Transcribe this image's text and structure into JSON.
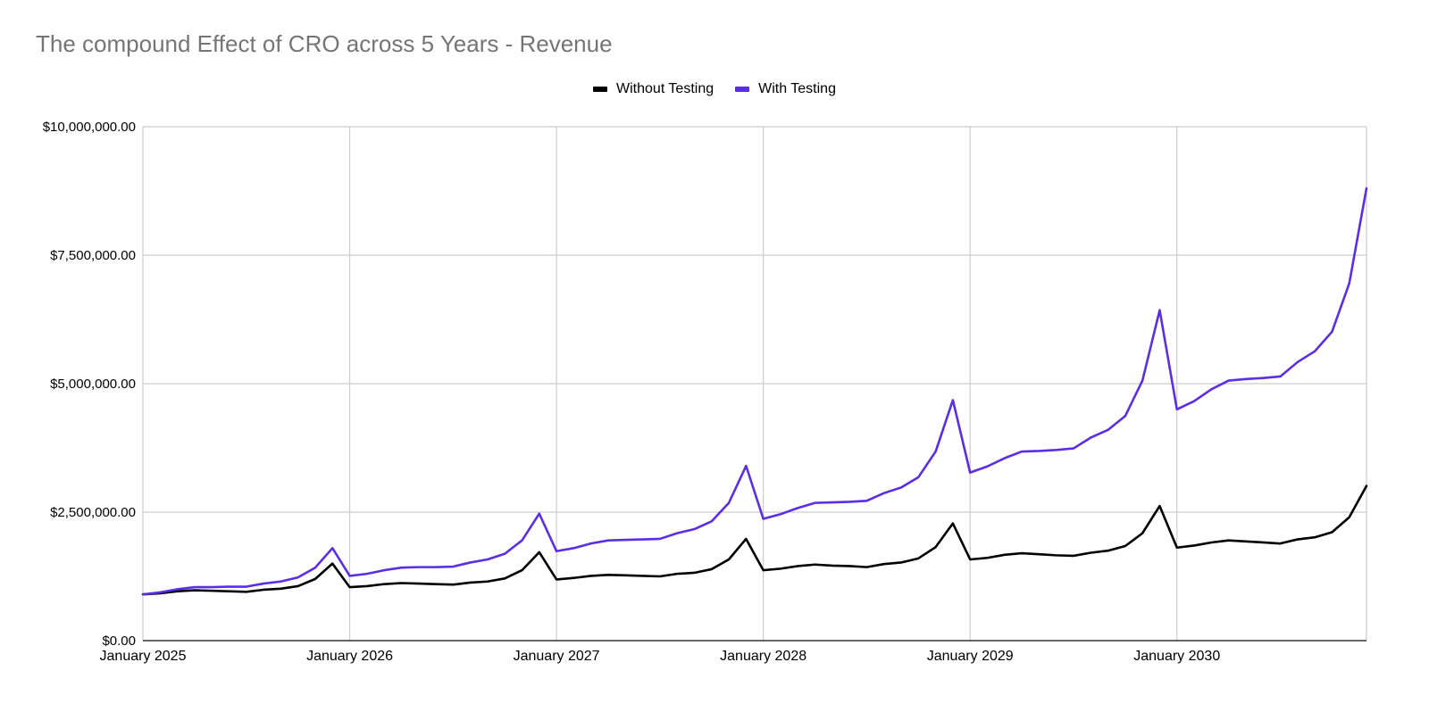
{
  "chart_data": {
    "type": "line",
    "title": "The compound Effect of CRO across 5 Years - Revenue",
    "xlabel": "",
    "ylabel": "",
    "ylim": [
      0,
      10000000
    ],
    "y_ticks": [
      0,
      2500000,
      5000000,
      7500000,
      10000000
    ],
    "y_tick_labels": [
      "$0.00",
      "$2,500,000.00",
      "$5,000,000.00",
      "$7,500,000.00",
      "$10,000,000.00"
    ],
    "x_ticks": [
      "January 2025",
      "January 2026",
      "January 2027",
      "January 2028",
      "January 2029",
      "January 2030"
    ],
    "x": [
      "Jan 2025",
      "Feb 2025",
      "Mar 2025",
      "Apr 2025",
      "May 2025",
      "Jun 2025",
      "Jul 2025",
      "Aug 2025",
      "Sep 2025",
      "Oct 2025",
      "Nov 2025",
      "Dec 2025",
      "Jan 2026",
      "Feb 2026",
      "Mar 2026",
      "Apr 2026",
      "May 2026",
      "Jun 2026",
      "Jul 2026",
      "Aug 2026",
      "Sep 2026",
      "Oct 2026",
      "Nov 2026",
      "Dec 2026",
      "Jan 2027",
      "Feb 2027",
      "Mar 2027",
      "Apr 2027",
      "May 2027",
      "Jun 2027",
      "Jul 2027",
      "Aug 2027",
      "Sep 2027",
      "Oct 2027",
      "Nov 2027",
      "Dec 2027",
      "Jan 2028",
      "Feb 2028",
      "Mar 2028",
      "Apr 2028",
      "May 2028",
      "Jun 2028",
      "Jul 2028",
      "Aug 2028",
      "Sep 2028",
      "Oct 2028",
      "Nov 2028",
      "Dec 2028",
      "Jan 2029",
      "Feb 2029",
      "Mar 2029",
      "Apr 2029",
      "May 2029",
      "Jun 2029",
      "Jul 2029",
      "Aug 2029",
      "Sep 2029",
      "Oct 2029",
      "Nov 2029",
      "Dec 2029",
      "Jan 2030",
      "Feb 2030",
      "Mar 2030",
      "Apr 2030",
      "May 2030",
      "Jun 2030",
      "Jul 2030",
      "Aug 2030",
      "Sep 2030",
      "Oct 2030",
      "Nov 2030",
      "Dec 2030"
    ],
    "grid": true,
    "legend_position": "top-center",
    "series": [
      {
        "name": "Without Testing",
        "color": "#000000",
        "values": [
          900000,
          920000,
          960000,
          980000,
          970000,
          960000,
          950000,
          990000,
          1010000,
          1060000,
          1200000,
          1500000,
          1040000,
          1060000,
          1100000,
          1120000,
          1110000,
          1100000,
          1090000,
          1130000,
          1150000,
          1210000,
          1370000,
          1720000,
          1190000,
          1220000,
          1260000,
          1280000,
          1270000,
          1260000,
          1250000,
          1300000,
          1320000,
          1390000,
          1580000,
          1980000,
          1370000,
          1400000,
          1450000,
          1480000,
          1460000,
          1450000,
          1430000,
          1490000,
          1520000,
          1600000,
          1820000,
          2280000,
          1580000,
          1610000,
          1670000,
          1700000,
          1680000,
          1660000,
          1650000,
          1710000,
          1750000,
          1840000,
          2090000,
          2620000,
          1810000,
          1850000,
          1910000,
          1950000,
          1930000,
          1910000,
          1890000,
          1970000,
          2010000,
          2110000,
          2400000,
          3010000
        ]
      },
      {
        "name": "With Testing",
        "color": "#5b2de5",
        "values": [
          900000,
          940000,
          1000000,
          1040000,
          1040000,
          1050000,
          1050000,
          1110000,
          1150000,
          1230000,
          1420000,
          1800000,
          1260000,
          1300000,
          1370000,
          1420000,
          1430000,
          1430000,
          1440000,
          1520000,
          1580000,
          1690000,
          1950000,
          2470000,
          1740000,
          1800000,
          1890000,
          1950000,
          1960000,
          1970000,
          1980000,
          2090000,
          2170000,
          2320000,
          2680000,
          3400000,
          2370000,
          2460000,
          2580000,
          2680000,
          2690000,
          2700000,
          2720000,
          2870000,
          2980000,
          3180000,
          3680000,
          4680000,
          3270000,
          3390000,
          3550000,
          3680000,
          3690000,
          3710000,
          3740000,
          3950000,
          4100000,
          4370000,
          5060000,
          6430000,
          4500000,
          4660000,
          4890000,
          5060000,
          5090000,
          5110000,
          5140000,
          5420000,
          5630000,
          6010000,
          6950000,
          8800000
        ]
      }
    ]
  }
}
